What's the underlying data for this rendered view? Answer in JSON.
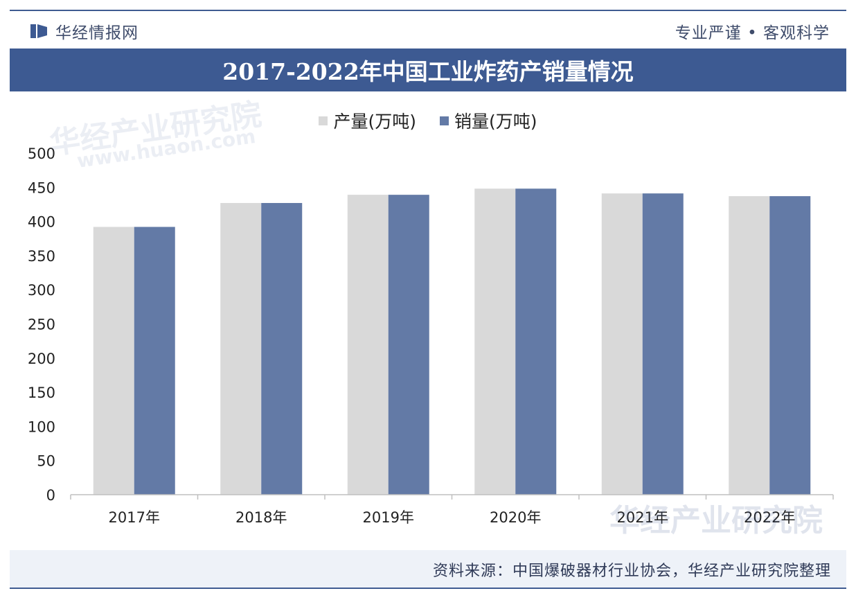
{
  "header": {
    "brand_name": "华经情报网",
    "slogan": "专业严谨 • 客观科学"
  },
  "colors": {
    "production": "#d9d9d9",
    "sales": "#637aa6",
    "title_bg": "#3d5a92"
  },
  "watermark": {
    "text": "华经产业研究院",
    "url": "www.huaon.com"
  },
  "source": "资料来源：中国爆破器材行业协会，华经产业研究院整理",
  "chart_data": {
    "type": "bar",
    "title": "2017-2022年中国工业炸药产销量情况",
    "categories": [
      "2017年",
      "2018年",
      "2019年",
      "2020年",
      "2021年",
      "2022年"
    ],
    "series": [
      {
        "name": "产量(万吨)",
        "values": [
          392,
          427,
          439,
          448,
          441,
          437
        ]
      },
      {
        "name": "销量(万吨)",
        "values": [
          392,
          427,
          439,
          448,
          441,
          437
        ]
      }
    ],
    "ylim": [
      0,
      500
    ],
    "yticks": [
      0,
      50,
      100,
      150,
      200,
      250,
      300,
      350,
      400,
      450,
      500
    ],
    "xlabel": "",
    "ylabel": "",
    "legend": "top-center"
  }
}
